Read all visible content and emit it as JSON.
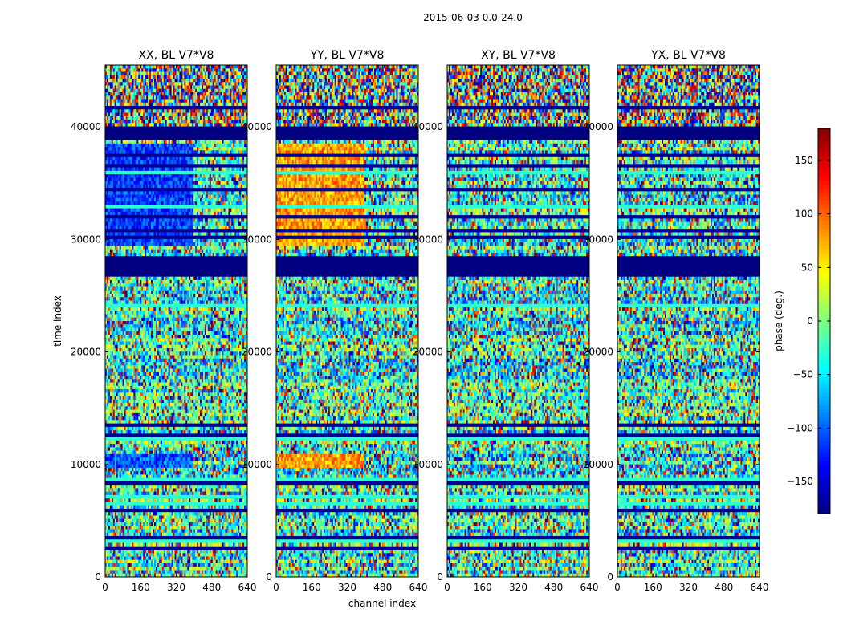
{
  "suptitle": "2015-06-03 0.0-24.0",
  "chart_data": {
    "type": "heatmap",
    "panels": [
      {
        "title": "XX, BL V7*V8",
        "profile": "xx"
      },
      {
        "title": "YY, BL V7*V8",
        "profile": "yy"
      },
      {
        "title": "XY, BL V7*V8",
        "profile": "cross"
      },
      {
        "title": "YX, BL V7*V8",
        "profile": "cross"
      }
    ],
    "xlabel": "channel index",
    "ylabel": "time index",
    "xlim": [
      0,
      640
    ],
    "ylim": [
      0,
      45500
    ],
    "xticks": [
      0,
      160,
      320,
      480,
      640
    ],
    "xtick_labels": [
      "0",
      "160",
      "320",
      "480",
      "640"
    ],
    "yticks": [
      0,
      10000,
      20000,
      30000,
      40000
    ],
    "ytick_labels": [
      "0",
      "10000",
      "20000",
      "30000",
      "40000"
    ],
    "colorbar": {
      "label": "phase (deg.)",
      "range": [
        -180,
        180
      ],
      "ticks": [
        -150,
        -100,
        -50,
        0,
        50,
        100,
        150
      ],
      "tick_labels": [
        "−150",
        "−100",
        "−50",
        "0",
        "50",
        "100",
        "150"
      ],
      "colormap": "jet"
    },
    "flagged_time_ranges": [
      [
        26800,
        28600
      ],
      [
        38800,
        39900
      ]
    ]
  }
}
